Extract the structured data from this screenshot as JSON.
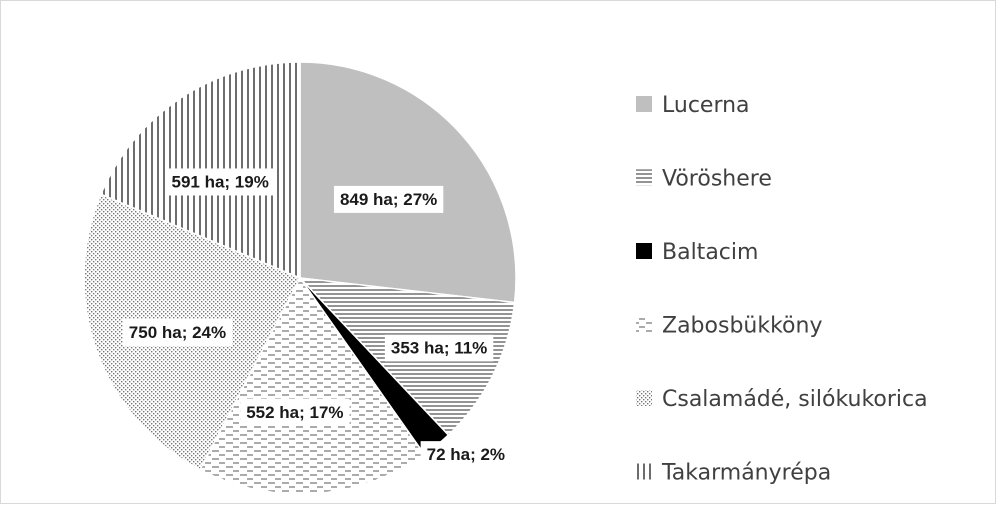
{
  "chart_data": {
    "type": "pie",
    "categories": [
      "Lucerna",
      "Vöröshere",
      "Baltacim",
      "Zabosbükköny",
      "Csalamádé, silókukorica",
      "Takarmányrépa"
    ],
    "values": [
      849,
      353,
      72,
      552,
      750,
      591
    ],
    "unit": "ha",
    "percentages": [
      27,
      11,
      2,
      17,
      24,
      19
    ],
    "data_labels": [
      "849 ha; 27%",
      "353 ha; 11%",
      "72 ha; 2%",
      "552 ha; 17%",
      "750 ha; 24%",
      "591 ha; 19%"
    ],
    "colors": [
      "#bfbfbf",
      "#6e6e6e",
      "#000000",
      "#808080",
      "#8c8c8c",
      "#404040"
    ],
    "patterns": [
      "solid",
      "horizontal-lines",
      "solid",
      "dashes",
      "dots",
      "vertical-lines"
    ],
    "legend_position": "right",
    "start_angle_deg": 0,
    "direction": "clockwise"
  }
}
